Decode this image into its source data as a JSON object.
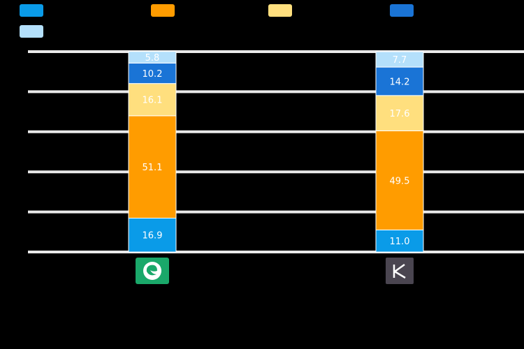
{
  "chart_data": {
    "type": "bar",
    "stacked": true,
    "categories": [
      "",
      ""
    ],
    "category_icons": [
      "green-leaf-app-icon",
      "k-letter-app-icon"
    ],
    "series": [
      {
        "values": [
          16.9,
          11.0
        ],
        "color": "#0a9be8"
      },
      {
        "values": [
          51.1,
          49.5
        ],
        "color": "#ff9c00"
      },
      {
        "values": [
          16.1,
          17.6
        ],
        "color": "#ffdf7e"
      },
      {
        "values": [
          10.2,
          14.2
        ],
        "color": "#1a74d6"
      },
      {
        "values": [
          5.8,
          7.7
        ],
        "color": "#b4e0fb"
      }
    ],
    "y_ticks": [
      "",
      "",
      "",
      "",
      "",
      ""
    ],
    "ylim": [
      0,
      100
    ],
    "grid": true,
    "legend_position": "top",
    "data_labels": true
  },
  "colors": {
    "background": "#000000",
    "gridline": "#e9e9e9",
    "bar_separator": "#ffffff",
    "label_light": "#ffffff",
    "label_dark": "#ffffff",
    "icon_green": "#1aa86a",
    "icon_dark": "#4a4550"
  }
}
